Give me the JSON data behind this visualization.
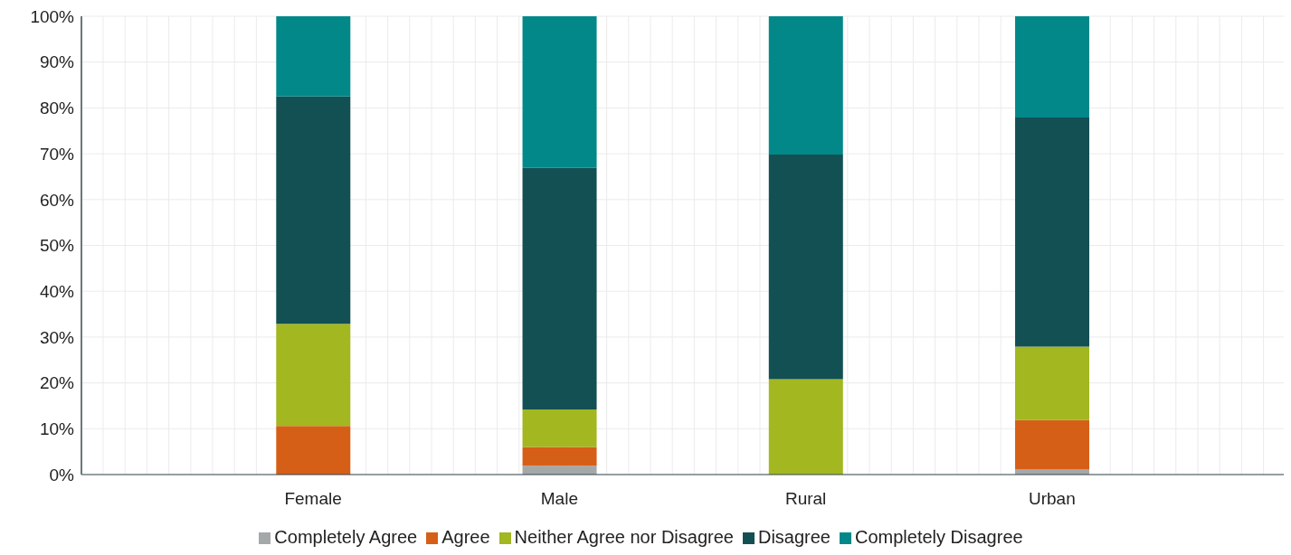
{
  "chart_data": {
    "type": "bar",
    "stacked": true,
    "categories": [
      "Female",
      "Male",
      "Rural",
      "Urban"
    ],
    "series": [
      {
        "name": "Completely Agree",
        "color": "#a5a8a8",
        "values": [
          0,
          1.9,
          0,
          1.2
        ]
      },
      {
        "name": "Agree",
        "color": "#d65f17",
        "values": [
          10.6,
          4.1,
          0,
          10.7
        ]
      },
      {
        "name": "Neither Agree nor Disagree",
        "color": "#a2b720",
        "values": [
          22.3,
          8.2,
          20.8,
          16.0
        ]
      },
      {
        "name": "Disagree",
        "color": "#135054",
        "values": [
          49.6,
          52.7,
          49.0,
          50.0
        ]
      },
      {
        "name": "Completely Disagree",
        "color": "#03888a",
        "values": [
          17.5,
          33.1,
          30.2,
          22.1
        ]
      }
    ],
    "ylim": [
      0,
      100
    ],
    "yticks": [
      {
        "value": 0,
        "label": "0%"
      },
      {
        "value": 10,
        "label": "10%"
      },
      {
        "value": 20,
        "label": "20%"
      },
      {
        "value": 30,
        "label": "30%"
      },
      {
        "value": 40,
        "label": "40%"
      },
      {
        "value": 50,
        "label": "50%"
      },
      {
        "value": 60,
        "label": "60%"
      },
      {
        "value": 70,
        "label": "70%"
      },
      {
        "value": 80,
        "label": "80%"
      },
      {
        "value": 90,
        "label": "90%"
      },
      {
        "value": 100,
        "label": "100%"
      }
    ],
    "grid": true,
    "legend": "bottom"
  }
}
